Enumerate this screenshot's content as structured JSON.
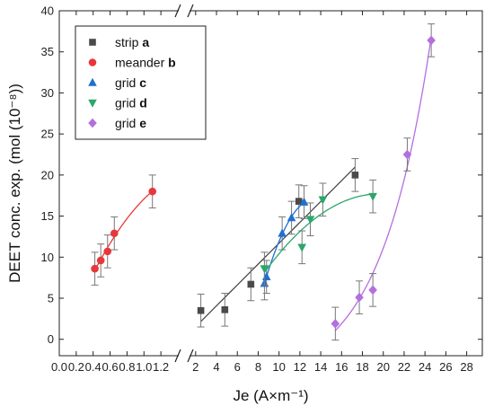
{
  "chart_data": {
    "type": "scatter",
    "xlabel": "Je (A×m⁻¹)",
    "ylabel": "DEET conc. exp. (mol (10⁻⁸))",
    "ylim": [
      -2,
      40
    ],
    "yticks": [
      0,
      5,
      10,
      15,
      20,
      25,
      30,
      35,
      40
    ],
    "x_broken_axis": true,
    "x_segments": [
      {
        "range": [
          0.0,
          1.4
        ],
        "ticks": [
          0.0,
          0.2,
          0.4,
          0.6,
          0.8,
          1.0,
          1.2
        ],
        "tick_labels": [
          "0.0",
          "0.2",
          "0.4",
          "0.6",
          "0.8",
          "1.0",
          "1.2"
        ]
      },
      {
        "range": [
          1.5,
          29.5
        ],
        "ticks": [
          2,
          4,
          6,
          8,
          10,
          12,
          14,
          16,
          18,
          20,
          22,
          24,
          26,
          28
        ],
        "tick_labels": [
          "2",
          "4",
          "6",
          "8",
          "10",
          "12",
          "14",
          "16",
          "18",
          "20",
          "22",
          "24",
          "26",
          "28"
        ]
      }
    ],
    "grid": false,
    "legend_placement": "top-left",
    "series": [
      {
        "name": "strip",
        "label_suffix": "a",
        "marker": "square",
        "color": "#4a4a4a",
        "segment": 1,
        "x": [
          2.5,
          4.8,
          7.3,
          11.9,
          17.3
        ],
        "y": [
          3.5,
          3.6,
          6.7,
          16.8,
          20.0
        ],
        "yerr": [
          2.0,
          2.0,
          2.0,
          2.0,
          2.0
        ],
        "fit": "linear",
        "fit_range": [
          2.5,
          17.3
        ]
      },
      {
        "name": "meander",
        "label_suffix": "b",
        "marker": "circle",
        "color": "#e8373a",
        "segment": 0,
        "x": [
          0.42,
          0.49,
          0.57,
          0.65,
          1.1
        ],
        "y": [
          8.6,
          9.6,
          10.7,
          12.9,
          18.0
        ],
        "yerr": [
          2.0,
          2.0,
          2.0,
          2.0,
          2.0
        ],
        "fit": "curve",
        "fit_range": [
          0.42,
          1.1
        ]
      },
      {
        "name": "grid",
        "label_suffix": "c",
        "marker": "triangle-up",
        "color": "#1f6fd1",
        "segment": 1,
        "x": [
          8.6,
          8.8,
          10.3,
          11.2,
          12.4
        ],
        "y": [
          6.8,
          7.6,
          12.9,
          14.8,
          16.7
        ],
        "yerr": [
          2.0,
          2.0,
          2.0,
          2.0,
          2.0
        ],
        "fit": "curve",
        "fit_range": [
          8.6,
          12.4
        ]
      },
      {
        "name": "grid",
        "label_suffix": "d",
        "marker": "triangle-down",
        "color": "#2aa76a",
        "segment": 1,
        "x": [
          8.6,
          12.2,
          13.0,
          14.2,
          19.0
        ],
        "y": [
          8.6,
          11.2,
          14.6,
          17.0,
          17.4
        ],
        "yerr": [
          2.0,
          2.0,
          2.0,
          2.0,
          2.0
        ],
        "fit": "curve",
        "fit_range": [
          8.6,
          19.0
        ]
      },
      {
        "name": "grid",
        "label_suffix": "e",
        "marker": "diamond",
        "color": "#b36fe0",
        "segment": 1,
        "x": [
          15.4,
          17.7,
          19.0,
          22.3,
          24.6
        ],
        "y": [
          1.9,
          5.1,
          6.0,
          22.5,
          36.4
        ],
        "yerr": [
          2.0,
          2.0,
          2.0,
          2.0,
          2.0
        ],
        "fit": "exponential",
        "fit_range": [
          15.4,
          24.6
        ]
      }
    ]
  }
}
